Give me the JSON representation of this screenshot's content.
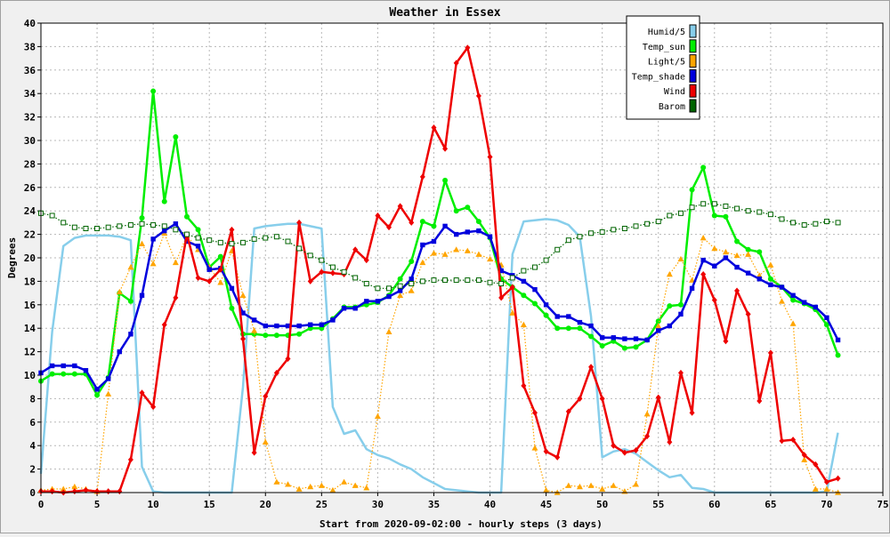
{
  "chart_data": {
    "type": "line",
    "title": "Weather in Essex",
    "xlabel": "Start from 2020-09-02:00 - hourly steps (3 days)",
    "ylabel": "Degrees",
    "xlim": [
      0,
      75
    ],
    "ylim": [
      0,
      40
    ],
    "xticks": [
      0,
      5,
      10,
      15,
      20,
      25,
      30,
      35,
      40,
      45,
      50,
      55,
      60,
      65,
      70,
      75
    ],
    "yticks": [
      0,
      2,
      4,
      6,
      8,
      10,
      12,
      14,
      16,
      18,
      20,
      22,
      24,
      26,
      28,
      30,
      32,
      34,
      36,
      38,
      40
    ],
    "grid": true,
    "legend_position": "top-right",
    "x": [
      0,
      1,
      2,
      3,
      4,
      5,
      6,
      7,
      8,
      9,
      10,
      11,
      12,
      13,
      14,
      15,
      16,
      17,
      18,
      19,
      20,
      21,
      22,
      23,
      24,
      25,
      26,
      27,
      28,
      29,
      30,
      31,
      32,
      33,
      34,
      35,
      36,
      37,
      38,
      39,
      40,
      41,
      42,
      43,
      44,
      45,
      46,
      47,
      48,
      49,
      50,
      51,
      52,
      53,
      54,
      55,
      56,
      57,
      58,
      59,
      60,
      61,
      62,
      63,
      64,
      65,
      66,
      67,
      68,
      69,
      70,
      71
    ],
    "series": [
      {
        "name": "Humid/5",
        "color": "#87ceeb",
        "marker": "none",
        "style": "solid",
        "values": [
          1.6,
          13.7,
          21.0,
          21.7,
          21.9,
          21.9,
          21.9,
          21.8,
          21.5,
          2.2,
          0.1,
          0.0,
          0.0,
          0.0,
          0.0,
          0.0,
          0.0,
          0.0,
          9.0,
          22.5,
          22.7,
          22.8,
          22.9,
          22.9,
          22.7,
          22.5,
          7.3,
          5.0,
          5.3,
          3.7,
          3.2,
          2.9,
          2.4,
          2.0,
          1.3,
          0.8,
          0.3,
          0.2,
          0.1,
          0.0,
          0.0,
          0.0,
          20.3,
          23.1,
          23.2,
          23.3,
          23.2,
          22.8,
          21.8,
          15.0,
          3.0,
          3.5,
          3.7,
          3.3,
          2.6,
          1.9,
          1.3,
          1.5,
          0.4,
          0.3,
          0.0,
          0.0,
          0.0,
          0.0,
          0.0,
          0.0,
          0.0,
          0.0,
          0.0,
          0.0,
          0.1,
          5.1
        ]
      },
      {
        "name": "Temp_sun",
        "color": "#00ee00",
        "marker": "circle",
        "style": "solid",
        "values": [
          9.5,
          10.1,
          10.1,
          10.1,
          10.1,
          8.3,
          9.8,
          17.0,
          16.3,
          23.4,
          34.2,
          24.8,
          30.3,
          23.5,
          22.4,
          19.2,
          20.1,
          15.7,
          13.5,
          13.5,
          13.4,
          13.4,
          13.4,
          13.5,
          14.0,
          14.0,
          14.8,
          15.8,
          15.8,
          16.0,
          16.2,
          16.8,
          18.2,
          19.7,
          23.1,
          22.7,
          26.6,
          24.0,
          24.3,
          23.1,
          21.7,
          18.2,
          17.5,
          16.8,
          16.1,
          15.1,
          14.0,
          14.0,
          14.0,
          13.3,
          12.5,
          12.9,
          12.3,
          12.4,
          13.0,
          14.6,
          15.9,
          16.0,
          25.8,
          27.7,
          23.6,
          23.5,
          21.4,
          20.7,
          20.5,
          18.2,
          17.5,
          16.4,
          16.1,
          15.6,
          14.3,
          11.7
        ]
      },
      {
        "name": "Light/5",
        "color": "#ffa500",
        "marker": "triangle",
        "style": "dotted",
        "values": [
          0.2,
          0.3,
          0.3,
          0.5,
          0.3,
          0.1,
          8.4,
          17.1,
          19.2,
          21.2,
          19.5,
          22.1,
          19.6,
          21.9,
          20.7,
          19.2,
          17.9,
          20.6,
          16.8,
          13.8,
          4.3,
          0.9,
          0.7,
          0.3,
          0.5,
          0.6,
          0.2,
          0.9,
          0.6,
          0.4,
          6.5,
          13.7,
          16.8,
          17.2,
          19.6,
          20.4,
          20.3,
          20.7,
          20.6,
          20.3,
          19.9,
          19.4,
          15.3,
          14.3,
          3.8,
          0.2,
          0.0,
          0.6,
          0.5,
          0.6,
          0.3,
          0.6,
          0.1,
          0.7,
          6.7,
          14.2,
          18.6,
          19.9,
          18.1,
          21.7,
          20.8,
          20.5,
          20.2,
          20.3,
          18.5,
          19.4,
          16.3,
          14.4,
          2.8,
          0.3,
          0.3,
          0.0
        ]
      },
      {
        "name": "Temp_shade",
        "color": "#0000dd",
        "marker": "square",
        "style": "solid",
        "values": [
          10.2,
          10.8,
          10.8,
          10.8,
          10.4,
          8.8,
          9.7,
          12.0,
          13.5,
          16.8,
          21.6,
          22.3,
          22.9,
          21.4,
          21.0,
          19.0,
          19.1,
          17.4,
          15.3,
          14.7,
          14.2,
          14.2,
          14.2,
          14.2,
          14.3,
          14.3,
          14.7,
          15.7,
          15.7,
          16.3,
          16.3,
          16.7,
          17.2,
          18.2,
          21.1,
          21.4,
          22.7,
          22.0,
          22.2,
          22.3,
          21.8,
          18.9,
          18.5,
          18.0,
          17.3,
          16.0,
          15.0,
          15.0,
          14.5,
          14.2,
          13.2,
          13.2,
          13.1,
          13.1,
          13.0,
          13.8,
          14.2,
          15.2,
          17.4,
          19.8,
          19.3,
          20.0,
          19.2,
          18.7,
          18.2,
          17.7,
          17.5,
          16.8,
          16.2,
          15.8,
          14.9,
          13.0
        ]
      },
      {
        "name": "Wind",
        "color": "#ee0000",
        "marker": "diamond",
        "style": "solid",
        "values": [
          0.1,
          0.1,
          0.0,
          0.1,
          0.2,
          0.1,
          0.1,
          0.1,
          2.8,
          8.5,
          7.3,
          14.3,
          16.6,
          22.0,
          18.3,
          18.0,
          19.0,
          22.4,
          13.1,
          3.4,
          8.2,
          10.2,
          11.4,
          23.0,
          18.0,
          18.8,
          18.7,
          18.6,
          20.7,
          19.8,
          23.6,
          22.6,
          24.4,
          23.0,
          26.9,
          31.1,
          29.3,
          36.6,
          37.9,
          33.8,
          28.6,
          16.6,
          17.5,
          9.1,
          6.8,
          3.5,
          3.0,
          6.9,
          8.0,
          10.7,
          8.0,
          4.0,
          3.4,
          3.6,
          4.8,
          8.1,
          4.3,
          10.2,
          6.8,
          18.6,
          16.4,
          12.9,
          17.2,
          15.2,
          7.8,
          11.9,
          4.4,
          4.5,
          3.2,
          2.4,
          0.9,
          1.2
        ]
      },
      {
        "name": "Barom",
        "color": "#006400",
        "marker": "square-open",
        "style": "dotted",
        "values": [
          23.8,
          23.6,
          23.0,
          22.6,
          22.5,
          22.5,
          22.6,
          22.7,
          22.8,
          22.9,
          22.8,
          22.7,
          22.4,
          22.0,
          21.7,
          21.5,
          21.3,
          21.2,
          21.3,
          21.6,
          21.7,
          21.8,
          21.4,
          20.8,
          20.2,
          19.8,
          19.2,
          18.8,
          18.3,
          17.8,
          17.4,
          17.4,
          17.6,
          17.8,
          18.0,
          18.1,
          18.1,
          18.1,
          18.1,
          18.1,
          17.9,
          17.8,
          18.3,
          18.9,
          19.2,
          19.8,
          20.7,
          21.5,
          21.8,
          22.1,
          22.2,
          22.4,
          22.5,
          22.7,
          22.9,
          23.1,
          23.6,
          23.8,
          24.3,
          24.6,
          24.6,
          24.4,
          24.2,
          24.0,
          23.9,
          23.7,
          23.3,
          23.0,
          22.8,
          22.9,
          23.1,
          23.0
        ]
      }
    ]
  }
}
